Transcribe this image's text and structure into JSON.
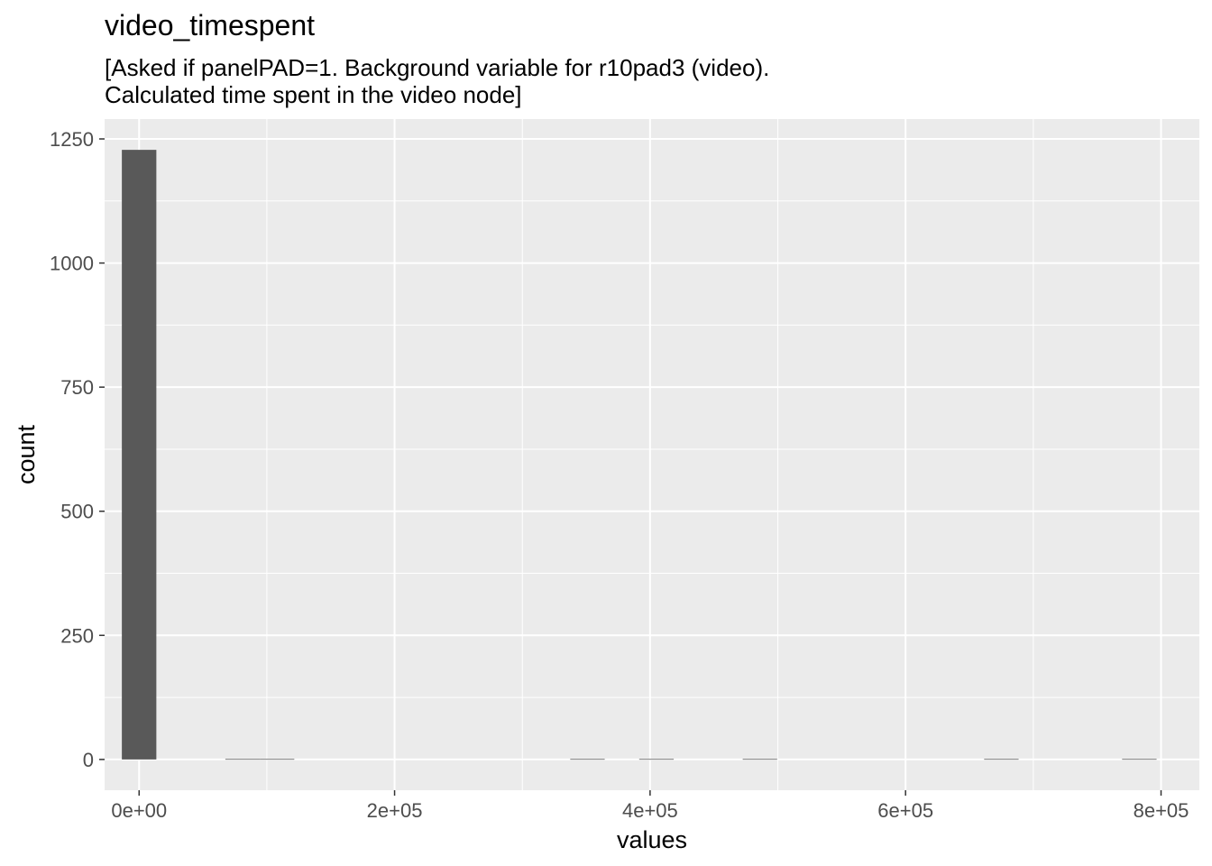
{
  "chart_data": {
    "type": "bar",
    "title": "video_timespent",
    "subtitle_lines": [
      "[Asked if panelPAD=1. Background variable for r10pad3 (video).",
      "Calculated time spent in the video node]"
    ],
    "xlabel": "values",
    "ylabel": "count",
    "xlim": [
      -27000,
      830000
    ],
    "ylim": [
      -62,
      1290
    ],
    "x_ticks": [
      0,
      200000,
      400000,
      600000,
      800000
    ],
    "x_tick_labels": [
      "0e+00",
      "2e+05",
      "4e+05",
      "6e+05",
      "8e+05"
    ],
    "y_ticks": [
      0,
      250,
      500,
      750,
      1000,
      1250
    ],
    "y_tick_labels": [
      "0",
      "250",
      "500",
      "750",
      "1000",
      "1250"
    ],
    "bin_width": 27000,
    "bins": [
      {
        "center": 0,
        "count": 1228
      },
      {
        "center": 81000,
        "count": 1
      },
      {
        "center": 108000,
        "count": 1
      },
      {
        "center": 351000,
        "count": 1
      },
      {
        "center": 405000,
        "count": 1
      },
      {
        "center": 486000,
        "count": 1
      },
      {
        "center": 675000,
        "count": 1
      },
      {
        "center": 783000,
        "count": 1
      }
    ],
    "grid": true,
    "colors": {
      "panel_background": "#EBEBEB",
      "grid_major": "#FFFFFF",
      "bar_fill": "#595959",
      "tick_text": "#4D4D4D",
      "axis_title": "#000000"
    }
  }
}
